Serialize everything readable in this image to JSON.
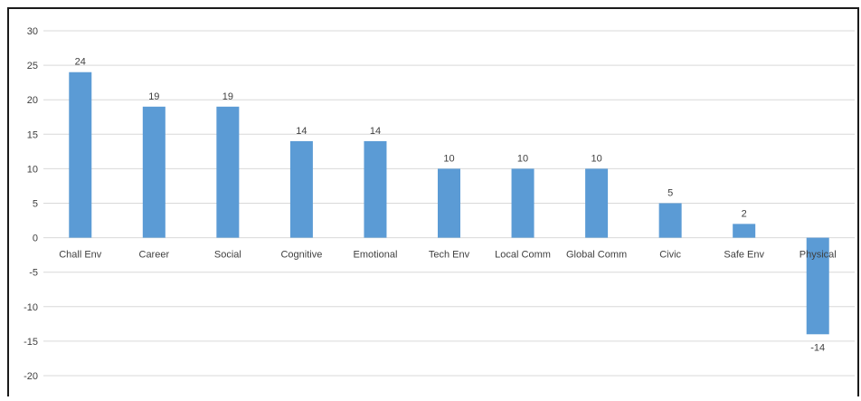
{
  "chart_data": {
    "type": "bar",
    "title": "",
    "xlabel": "",
    "ylabel": "",
    "categories": [
      "Chall Env",
      "Career",
      "Social",
      "Cognitive",
      "Emotional",
      "Tech Env",
      "Local Comm",
      "Global Comm",
      "Civic",
      "Safe Env",
      "Physical"
    ],
    "values": [
      24,
      19,
      19,
      14,
      14,
      10,
      10,
      10,
      5,
      2,
      -14
    ],
    "data_labels": [
      "24",
      "19",
      "19",
      "14",
      "14",
      "10",
      "10",
      "10",
      "5",
      "2",
      "-14"
    ],
    "bar_color": "#5B9BD5",
    "ylim": [
      -20,
      30
    ],
    "yticks": [
      30,
      25,
      20,
      15,
      10,
      5,
      0,
      -5,
      -10,
      -15,
      -20
    ],
    "ytick_labels": [
      "30",
      "25",
      "20",
      "15",
      "10",
      "5",
      "0",
      "-5",
      "-10",
      "-15",
      "-20"
    ],
    "grid": true,
    "legend": "none"
  }
}
